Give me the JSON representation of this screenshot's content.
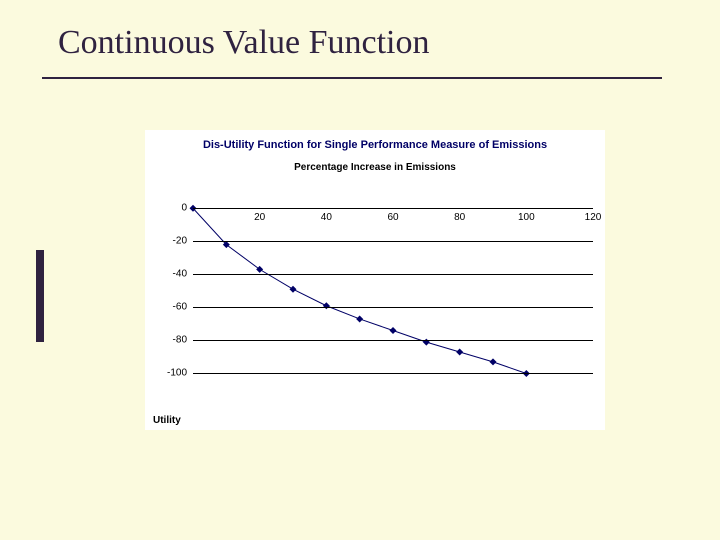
{
  "slide": {
    "title": "Continuous Value Function",
    "background_color": "#fbfade",
    "title_color": "#2f2240"
  },
  "chart": {
    "type": "line",
    "title": "Dis-Utility Function for Single Performance Measure of Emissions",
    "subtitle": "Percentage Increase in Emissions",
    "ylabel": "Utility",
    "title_color": "#000066",
    "background_color": "#ffffff",
    "grid_color": "#000000",
    "line_color": "#000066",
    "marker_color": "#000066",
    "marker_shape": "diamond",
    "marker_size": 7,
    "line_width": 1,
    "x_ticks": [
      0,
      20,
      40,
      60,
      80,
      100,
      120
    ],
    "y_ticks": [
      0,
      -20,
      -40,
      -60,
      -80,
      -100
    ],
    "xlim": [
      0,
      120
    ],
    "ylim": [
      -110,
      5
    ],
    "x_tick_fontsize": 10,
    "y_tick_fontsize": 10,
    "title_fontsize": 11,
    "subtitle_fontsize": 10,
    "data": [
      {
        "x": 0,
        "y": 0
      },
      {
        "x": 10,
        "y": -22
      },
      {
        "x": 20,
        "y": -37
      },
      {
        "x": 30,
        "y": -49
      },
      {
        "x": 40,
        "y": -59
      },
      {
        "x": 50,
        "y": -67
      },
      {
        "x": 60,
        "y": -74
      },
      {
        "x": 70,
        "y": -81
      },
      {
        "x": 80,
        "y": -87
      },
      {
        "x": 90,
        "y": -93
      },
      {
        "x": 100,
        "y": -100
      }
    ]
  }
}
